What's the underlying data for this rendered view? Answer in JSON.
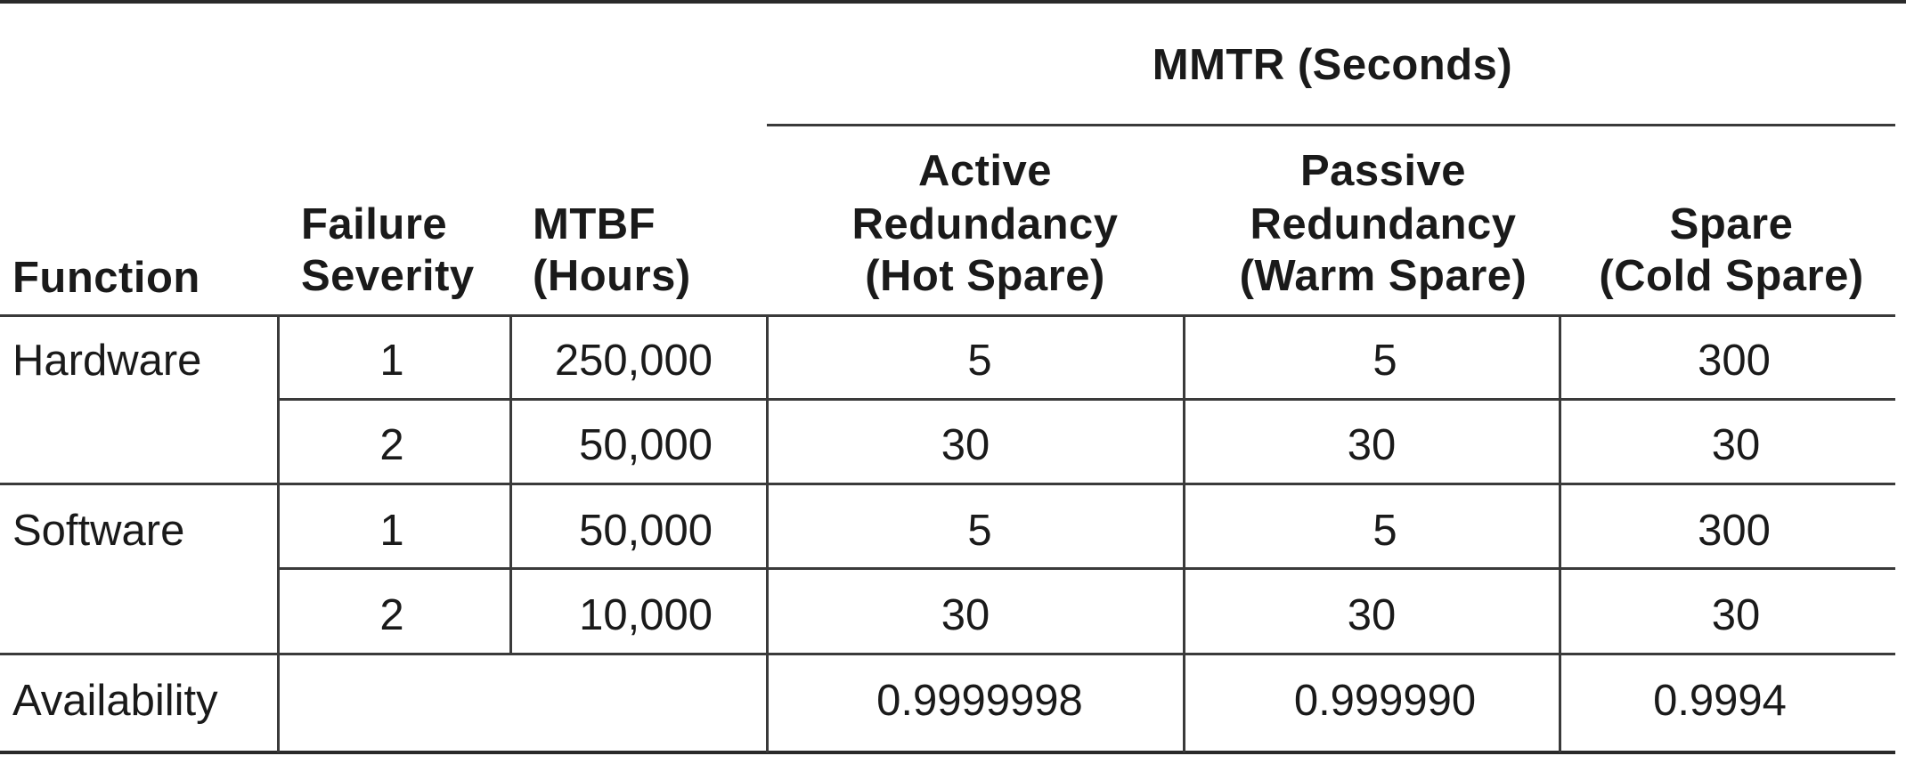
{
  "table": {
    "group_header": "MMTR (Seconds)",
    "columns": {
      "function": "Function",
      "severity": [
        "Failure",
        "Severity"
      ],
      "mtbf": [
        "MTBF",
        "(Hours)"
      ],
      "active": [
        "Active",
        "Redundancy",
        "(Hot Spare)"
      ],
      "passive": [
        "Passive",
        "Redundancy",
        "(Warm Spare)"
      ],
      "spare": [
        "Spare",
        "(Cold Spare)"
      ]
    },
    "rows": [
      {
        "function": "Hardware",
        "severity": "1",
        "mtbf": "250,000",
        "active": "5",
        "passive": "5",
        "spare": "300"
      },
      {
        "function": "",
        "severity": "2",
        "mtbf": "50,000",
        "active": "30",
        "passive": "30",
        "spare": "30"
      },
      {
        "function": "Software",
        "severity": "1",
        "mtbf": "50,000",
        "active": "5",
        "passive": "5",
        "spare": "300"
      },
      {
        "function": "",
        "severity": "2",
        "mtbf": "10,000",
        "active": "30",
        "passive": "30",
        "spare": "30"
      }
    ],
    "availability": {
      "label": "Availability",
      "active": "0.9999998",
      "passive": "0.999990",
      "spare": "0.9994"
    }
  }
}
